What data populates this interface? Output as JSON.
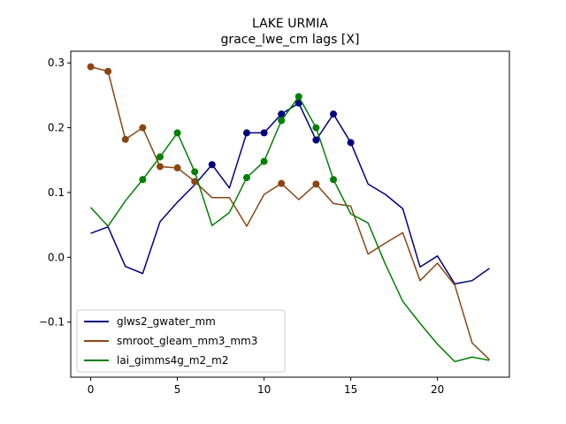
{
  "chart_data": {
    "type": "line",
    "title": "LAKE URMIA",
    "subtitle": "grace_lwe_cm lags [X]",
    "xlabel": "",
    "ylabel": "",
    "xlim": [
      -1.15,
      24.15
    ],
    "ylim": [
      -0.185,
      0.318
    ],
    "xticks": [
      0,
      5,
      10,
      15,
      20
    ],
    "yticks": [
      -0.1,
      0.0,
      0.1,
      0.2,
      0.3
    ],
    "ytick_labels": [
      "−0.1",
      "0.0",
      "0.1",
      "0.2",
      "0.3"
    ],
    "grid": false,
    "legend_position": "lower-left",
    "x": [
      0,
      1,
      2,
      3,
      4,
      5,
      6,
      7,
      8,
      9,
      10,
      11,
      12,
      13,
      14,
      15,
      16,
      17,
      18,
      19,
      20,
      21,
      22,
      23
    ],
    "series": [
      {
        "name": "glws2_gwater_mm",
        "color": "#00007f",
        "values": [
          0.037,
          0.047,
          -0.014,
          -0.025,
          0.055,
          0.085,
          0.112,
          0.143,
          0.107,
          0.192,
          0.192,
          0.221,
          0.238,
          0.181,
          0.221,
          0.177,
          0.113,
          0.097,
          0.075,
          -0.015,
          0.002,
          -0.041,
          -0.036,
          -0.017
        ],
        "markers": [
          7,
          9,
          10,
          11,
          12,
          13,
          14,
          15
        ]
      },
      {
        "name": "smroot_gleam_mm3_mm3",
        "color": "#8b4513",
        "values": [
          0.294,
          0.287,
          0.182,
          0.2,
          0.14,
          0.138,
          0.117,
          0.092,
          0.092,
          0.048,
          0.097,
          0.114,
          0.089,
          0.113,
          0.083,
          0.079,
          0.005,
          0.022,
          0.038,
          -0.036,
          -0.009,
          -0.043,
          -0.132,
          -0.158
        ],
        "markers": [
          0,
          1,
          2,
          3,
          4,
          5,
          6,
          11,
          13
        ]
      },
      {
        "name": "lai_gimms4g_m2_m2",
        "color": "#008000",
        "values": [
          0.077,
          0.048,
          0.087,
          0.12,
          0.155,
          0.192,
          0.132,
          0.049,
          0.069,
          0.123,
          0.148,
          0.211,
          0.248,
          0.2,
          0.12,
          0.067,
          0.053,
          -0.011,
          -0.068,
          -0.102,
          -0.134,
          -0.161,
          -0.154,
          -0.159
        ],
        "markers": [
          3,
          4,
          5,
          6,
          9,
          10,
          11,
          12,
          13,
          14
        ]
      }
    ]
  }
}
